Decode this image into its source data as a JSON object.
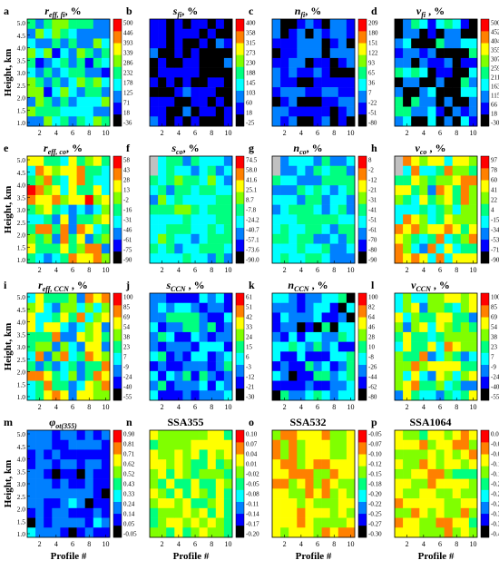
{
  "figure": {
    "y_axis_label": "Height, km",
    "x_axis_label": "Profile #",
    "colors": {
      "colorbar_scale": [
        "#000000",
        "#0000ff",
        "#0080ff",
        "#00ffff",
        "#00ff80",
        "#80ff00",
        "#ffff00",
        "#ff8000",
        "#ff0000"
      ],
      "missing": "#ffffff",
      "background_gray": "#c0c0c0"
    }
  },
  "chart_data": [
    {
      "panel": "a",
      "type": "heatmap",
      "title_main": "r",
      "title_sub": "eff, fi",
      "title_suffix": ", %",
      "colorbar_ticks": [
        "500",
        "446",
        "393",
        "339",
        "286",
        "232",
        "178",
        "125",
        "71",
        "18",
        "-36"
      ],
      "x_ticks": [
        "2",
        "4",
        "6",
        "8",
        "10"
      ],
      "y_ticks": [
        "1.0",
        "1.5",
        "2.0",
        "2.5",
        "3.0",
        "3.5",
        "4.0",
        "4.5",
        "5.0"
      ],
      "range": [
        -36,
        500
      ]
    },
    {
      "panel": "b",
      "type": "heatmap",
      "title_main": "s",
      "title_sub": "fi",
      "title_suffix": ", %",
      "colorbar_ticks": [
        "400",
        "358",
        "315",
        "273",
        "230",
        "188",
        "145",
        "103",
        "60",
        "18",
        "-25"
      ],
      "x_ticks": [
        "2",
        "4",
        "6",
        "8",
        "10"
      ],
      "y_ticks": [],
      "range": [
        -25,
        400
      ]
    },
    {
      "panel": "c",
      "type": "heatmap",
      "title_main": "n",
      "title_sub": "fi",
      "title_suffix": ", %",
      "colorbar_ticks": [
        "209",
        "180",
        "151",
        "122",
        "93",
        "65",
        "36",
        "7",
        "-22",
        "-51",
        "-80"
      ],
      "x_ticks": [
        "2",
        "4",
        "6",
        "8",
        "10"
      ],
      "y_ticks": [],
      "range": [
        -80,
        209
      ]
    },
    {
      "panel": "d",
      "type": "heatmap",
      "title_main": "v",
      "title_sub": "fi",
      "title_suffix": " , %",
      "colorbar_ticks": [
        "500",
        "452",
        "404",
        "355",
        "307",
        "259",
        "211",
        "163",
        "115",
        "66",
        "18",
        "-30"
      ],
      "x_ticks": [
        "2",
        "4",
        "6",
        "8",
        "10"
      ],
      "y_ticks": [],
      "range": [
        -30,
        500
      ]
    },
    {
      "panel": "e",
      "type": "heatmap",
      "title_main": "r",
      "title_sub": "eff, co",
      "title_suffix": ", %",
      "colorbar_ticks": [
        "58",
        "43",
        "28",
        "13",
        "-2",
        "-16",
        "-31",
        "-46",
        "-61",
        "-75",
        "-90"
      ],
      "x_ticks": [
        "2",
        "4",
        "6",
        "8",
        "10"
      ],
      "y_ticks": [
        "1.0",
        "1.5",
        "2.0",
        "2.5",
        "3.0",
        "3.5",
        "4.0",
        "4.5",
        "5.0"
      ],
      "range": [
        -90,
        58
      ]
    },
    {
      "panel": "f",
      "type": "heatmap",
      "title_main": "s",
      "title_sub": "co",
      "title_suffix": ", %",
      "colorbar_ticks": [
        "74.5",
        "58.0",
        "41.6",
        "25.1",
        "8.7",
        "-7.8",
        "-24.2",
        "-40.7",
        "-57.1",
        "-73.6",
        "-90.0"
      ],
      "x_ticks": [
        "2",
        "4",
        "6",
        "8",
        "10"
      ],
      "y_ticks": [],
      "range": [
        -90,
        74.5
      ]
    },
    {
      "panel": "g",
      "type": "heatmap",
      "title_main": "n",
      "title_sub": "co",
      "title_suffix": ", %",
      "colorbar_ticks": [
        "8",
        "-2",
        "-12",
        "-21",
        "-31",
        "-41",
        "-51",
        "-61",
        "-70",
        "-80",
        "-90"
      ],
      "x_ticks": [
        "2",
        "4",
        "6",
        "8",
        "10"
      ],
      "y_ticks": [],
      "range": [
        -90,
        8
      ]
    },
    {
      "panel": "h",
      "type": "heatmap",
      "title_main": "v",
      "title_sub": "co",
      "title_suffix": " , %",
      "colorbar_ticks": [
        "97",
        "78",
        "60",
        "41",
        "22",
        "4",
        "-15",
        "-34",
        "-53",
        "-71",
        "-90"
      ],
      "x_ticks": [
        "2",
        "4",
        "6",
        "8",
        "10"
      ],
      "y_ticks": [],
      "range": [
        -90,
        97
      ]
    },
    {
      "panel": "i",
      "type": "heatmap",
      "title_main": "r",
      "title_sub": "eff, CCN",
      "title_suffix": " , %",
      "colorbar_ticks": [
        "100",
        "85",
        "69",
        "54",
        "38",
        "23",
        "7",
        "-9",
        "-24",
        "-40",
        "-55"
      ],
      "x_ticks": [
        "2",
        "4",
        "6",
        "8",
        "10"
      ],
      "y_ticks": [
        "1.0",
        "1.5",
        "2.0",
        "2.5",
        "3.0",
        "3.5",
        "4.0",
        "4.5",
        "5.0"
      ],
      "range": [
        -55,
        100
      ]
    },
    {
      "panel": "j",
      "type": "heatmap",
      "title_main": "s",
      "title_sub": "CCN",
      "title_suffix": " , %",
      "colorbar_ticks": [
        "61",
        "51",
        "42",
        "33",
        "24",
        "15",
        "6",
        "-3",
        "-12",
        "-21",
        "-30"
      ],
      "x_ticks": [
        "2",
        "4",
        "6",
        "8",
        "10"
      ],
      "y_ticks": [],
      "range": [
        -30,
        61
      ]
    },
    {
      "panel": "k",
      "type": "heatmap",
      "title_main": "n",
      "title_sub": "CCN",
      "title_suffix": " , %",
      "colorbar_ticks": [
        "100",
        "82",
        "64",
        "46",
        "28",
        "10",
        "-8",
        "-26",
        "-44",
        "-62",
        "-80"
      ],
      "x_ticks": [
        "2",
        "4",
        "6",
        "8",
        "10"
      ],
      "y_ticks": [],
      "range": [
        -80,
        100
      ]
    },
    {
      "panel": "l",
      "type": "heatmap",
      "title_main": "v",
      "title_sub": "CCN",
      "title_suffix": " , %",
      "colorbar_ticks": [
        "100",
        "85",
        "69",
        "54",
        "38",
        "23",
        "7",
        "-9",
        "-24",
        "-40",
        "-55"
      ],
      "x_ticks": [
        "2",
        "4",
        "6",
        "8",
        "10"
      ],
      "y_ticks": [],
      "range": [
        -55,
        100
      ]
    },
    {
      "panel": "m",
      "type": "heatmap",
      "title_main": "φ",
      "title_sub": "ot(355)",
      "title_suffix": "",
      "colorbar_ticks": [
        "0.90",
        "0.81",
        "0.71",
        "0.62",
        "0.52",
        "0.43",
        "0.33",
        "0.24",
        "0.14",
        "0.05",
        "-0.05"
      ],
      "x_ticks": [
        "2",
        "4",
        "6",
        "8",
        "10"
      ],
      "y_ticks": [
        "1.0",
        "1.5",
        "2.0",
        "2.5",
        "3.0",
        "3.5",
        "4.0",
        "4.5",
        "5.0"
      ],
      "range": [
        -0.05,
        0.9
      ]
    },
    {
      "panel": "n",
      "type": "heatmap",
      "title_main": "SSA355",
      "title_sub": "",
      "title_suffix": "",
      "colorbar_ticks": [
        "0.10",
        "0.07",
        "0.04",
        "0.01",
        "-0.02",
        "-0.05",
        "-0.08",
        "-0.11",
        "-0.14",
        "-0.17",
        "-0.20"
      ],
      "x_ticks": [
        "2",
        "4",
        "6",
        "8",
        "10"
      ],
      "y_ticks": [],
      "range": [
        -0.2,
        0.1
      ]
    },
    {
      "panel": "o",
      "type": "heatmap",
      "title_main": "SSA532",
      "title_sub": "",
      "title_suffix": "",
      "colorbar_ticks": [
        "-0.05",
        "-0.07",
        "-0.10",
        "-0.12",
        "-0.15",
        "-0.18",
        "-0.20",
        "-0.22",
        "-0.25",
        "-0.27",
        "-0.30"
      ],
      "x_ticks": [
        "2",
        "4",
        "6",
        "8",
        "10"
      ],
      "y_ticks": [],
      "range": [
        -0.3,
        -0.05
      ]
    },
    {
      "panel": "p",
      "type": "heatmap",
      "title_main": "SSA1064",
      "title_sub": "",
      "title_suffix": "",
      "colorbar_ticks": [
        "0.00",
        "-0.04",
        "-0.08",
        "-0.12",
        "-0.16",
        "-0.20",
        "-0.24",
        "-0.28",
        "-0.32",
        "-0.36",
        "-0.40"
      ],
      "x_ticks": [
        "2",
        "4",
        "6",
        "8",
        "10"
      ],
      "y_ticks": [],
      "range": [
        -0.4,
        0
      ]
    }
  ]
}
